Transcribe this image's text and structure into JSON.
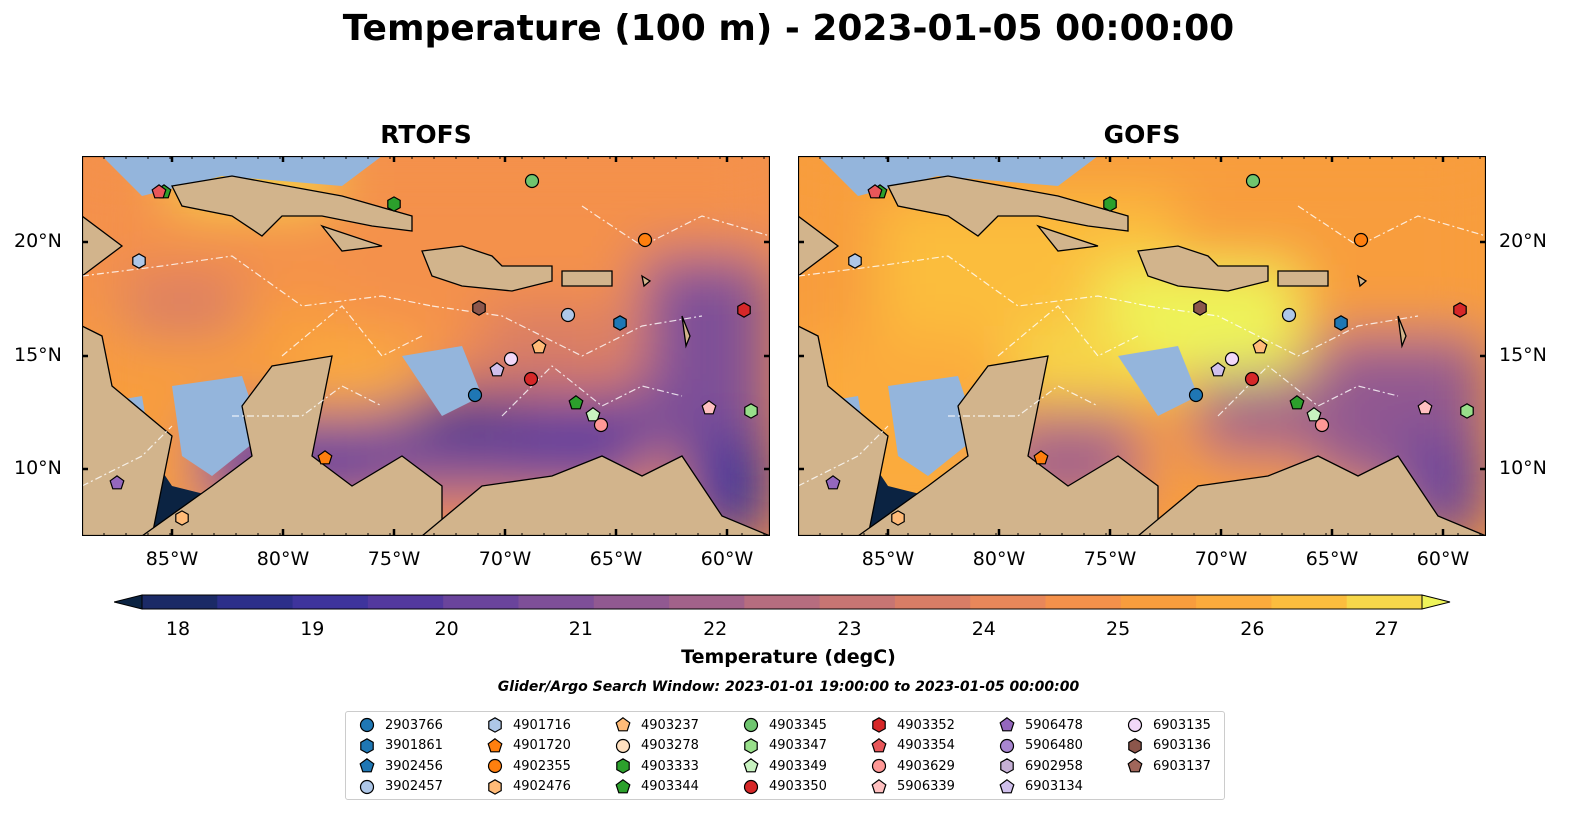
{
  "title": "Temperature (100 m) - 2023-01-05 00:00:00",
  "panels": [
    {
      "title": "RTOFS"
    },
    {
      "title": "GOFS"
    }
  ],
  "longitude_labels": [
    "85°W",
    "80°W",
    "75°W",
    "70°W",
    "65°W",
    "60°W"
  ],
  "latitude_labels": [
    "20°N",
    "15°N",
    "10°N"
  ],
  "colorbar": {
    "label": "Temperature (degC)",
    "ticks": [
      "18",
      "19",
      "20",
      "21",
      "22",
      "23",
      "24",
      "25",
      "26",
      "27"
    ],
    "min": 18,
    "max": 27,
    "extend": "both",
    "colors": [
      "#0b2342",
      "#1b2a66",
      "#2c2f8a",
      "#3e349c",
      "#53399e",
      "#6a449c",
      "#7e4f98",
      "#915991",
      "#a2628a",
      "#b66d7f",
      "#c77573",
      "#d87d66",
      "#e8875a",
      "#f4914b",
      "#f89d3d",
      "#fbab3c",
      "#fbbd3e",
      "#f6d74a",
      "#eef45a"
    ]
  },
  "search_window": "Glider/Argo Search Window: 2023-01-01 19:00:00 to 2023-01-05 00:00:00",
  "land_color": "#d2b48c",
  "shelf_color": "#94b5dc",
  "legend": [
    {
      "id": "2903766",
      "shape": "circle",
      "color": "#1f77b4"
    },
    {
      "id": "3901861",
      "shape": "hexagon",
      "color": "#1f77b4"
    },
    {
      "id": "3902456",
      "shape": "pentagon",
      "color": "#1f77b4"
    },
    {
      "id": "3902457",
      "shape": "circle",
      "color": "#aec7e8"
    },
    {
      "id": "4901716",
      "shape": "hexagon",
      "color": "#aec7e8"
    },
    {
      "id": "4901720",
      "shape": "pentagon",
      "color": "#ff7f0e"
    },
    {
      "id": "4902355",
      "shape": "circle",
      "color": "#ff7f0e"
    },
    {
      "id": "4902476",
      "shape": "hexagon",
      "color": "#ffbb78"
    },
    {
      "id": "4903237",
      "shape": "pentagon",
      "color": "#ffbb78"
    },
    {
      "id": "4903278",
      "shape": "circle",
      "color": "#ffe0c0"
    },
    {
      "id": "4903333",
      "shape": "hexagon",
      "color": "#2ca02c"
    },
    {
      "id": "4903344",
      "shape": "pentagon",
      "color": "#2ca02c"
    },
    {
      "id": "4903345",
      "shape": "circle",
      "color": "#6fc56f"
    },
    {
      "id": "4903347",
      "shape": "hexagon",
      "color": "#98df8a"
    },
    {
      "id": "4903349",
      "shape": "pentagon",
      "color": "#c8f2c0"
    },
    {
      "id": "4903350",
      "shape": "circle",
      "color": "#d62728"
    },
    {
      "id": "4903352",
      "shape": "hexagon",
      "color": "#d62728"
    },
    {
      "id": "4903354",
      "shape": "pentagon",
      "color": "#e8575a"
    },
    {
      "id": "4903629",
      "shape": "circle",
      "color": "#ff9896"
    },
    {
      "id": "5906339",
      "shape": "pentagon",
      "color": "#ffc0c0"
    },
    {
      "id": "5906478",
      "shape": "pentagon",
      "color": "#9467bd"
    },
    {
      "id": "5906480",
      "shape": "circle",
      "color": "#a886d0"
    },
    {
      "id": "6902958",
      "shape": "hexagon",
      "color": "#c5b0d5"
    },
    {
      "id": "6903134",
      "shape": "pentagon",
      "color": "#d0c0ec"
    },
    {
      "id": "6903135",
      "shape": "circle",
      "color": "#f2d8f8"
    },
    {
      "id": "6903136",
      "shape": "hexagon",
      "color": "#8c564b"
    },
    {
      "id": "6903137",
      "shape": "pentagon",
      "color": "#a0665a"
    }
  ]
}
